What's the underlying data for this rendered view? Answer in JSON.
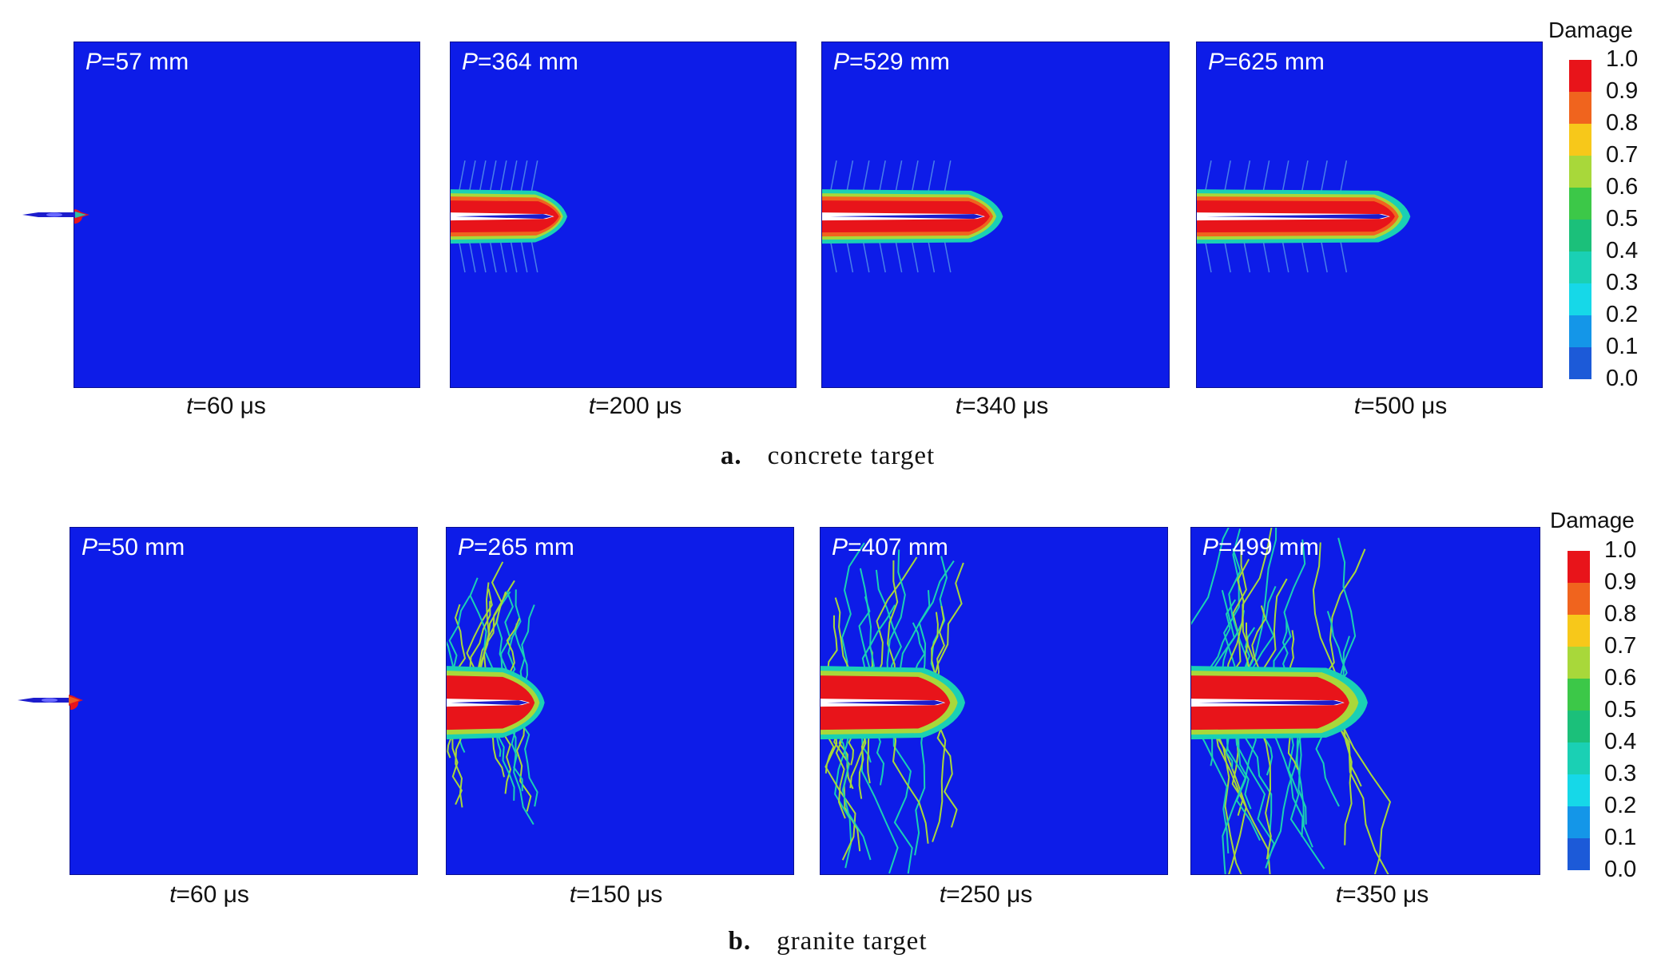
{
  "figure": {
    "rows": [
      {
        "id": "a",
        "caption_letter": "a.",
        "caption_text": "concrete target",
        "legend_title": "Damage",
        "panels": [
          {
            "p_var": "P",
            "p_value": "=57 mm",
            "t_var": "t",
            "t_value": "=60 μs",
            "crater_length": 0.0
          },
          {
            "p_var": "P",
            "p_value": "=364 mm",
            "t_var": "t",
            "t_value": "=200 μs",
            "crater_length": 0.3
          },
          {
            "p_var": "P",
            "p_value": "=529 mm",
            "t_var": "t",
            "t_value": "=340 μs",
            "crater_length": 0.47
          },
          {
            "p_var": "P",
            "p_value": "=625 mm",
            "t_var": "t",
            "t_value": "=500 μs",
            "crater_length": 0.56
          }
        ]
      },
      {
        "id": "b",
        "caption_letter": "b.",
        "caption_text": "granite target",
        "legend_title": "Damage",
        "panels": [
          {
            "p_var": "P",
            "p_value": "=50 mm",
            "t_var": "t",
            "t_value": "=60 μs",
            "crater_length": 0.0
          },
          {
            "p_var": "P",
            "p_value": "=265 mm",
            "t_var": "t",
            "t_value": "=150 μs",
            "crater_length": 0.24
          },
          {
            "p_var": "P",
            "p_value": "=407 mm",
            "t_var": "t",
            "t_value": "=250 μs",
            "crater_length": 0.36
          },
          {
            "p_var": "P",
            "p_value": "=499 mm",
            "t_var": "t",
            "t_value": "=350 μs",
            "crater_length": 0.44
          }
        ]
      }
    ],
    "colorbar": {
      "ticks": [
        "1.0",
        "0.9",
        "0.8",
        "0.7",
        "0.6",
        "0.5",
        "0.4",
        "0.3",
        "0.2",
        "0.1",
        "0.0"
      ],
      "colors": [
        "#e8141a",
        "#f0641e",
        "#f7c81a",
        "#a8d83a",
        "#3cc848",
        "#1bc07a",
        "#1ad0b4",
        "#16d8e8",
        "#1496e8",
        "#1c5ad8",
        "#0d1ce8"
      ]
    },
    "colors": {
      "undamaged": "#0d1ce8",
      "damage_high": "#e8141a",
      "damage_mid": "#f0641e",
      "damage_low": "#a8d83a",
      "damage_edge": "#1ad0b4",
      "penetrator": "#1c1ccc"
    }
  }
}
